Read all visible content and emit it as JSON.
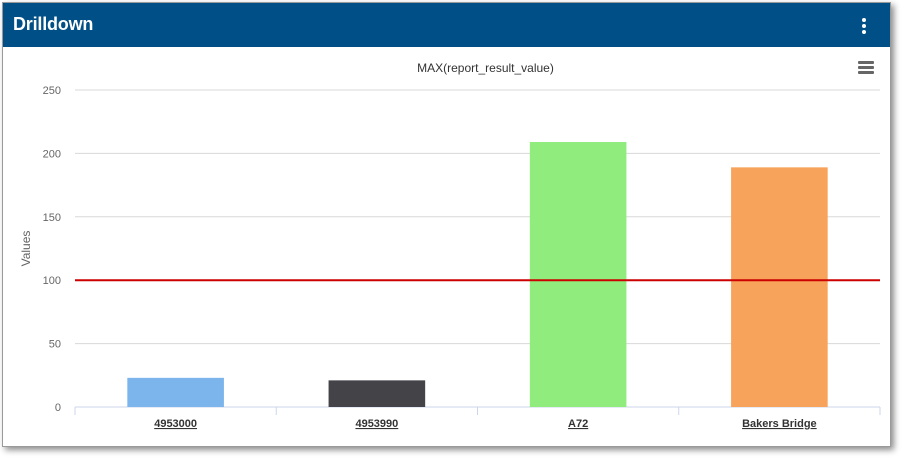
{
  "window": {
    "title": "Drilldown",
    "menu_icon": "kebab-vertical-icon",
    "chart_menu_icon": "hamburger-menu-icon"
  },
  "colors": {
    "header": "#004f86",
    "threshold": "#cc0000",
    "bars": [
      "#7cb5ec",
      "#434348",
      "#90ed7d",
      "#f7a35c"
    ]
  },
  "chart_data": {
    "type": "bar",
    "title": "MAX(report_result_value)",
    "xlabel": "",
    "ylabel": "Values",
    "categories": [
      "4953000",
      "4953990",
      "A72",
      "Bakers Bridge"
    ],
    "values": [
      23,
      21,
      209,
      189
    ],
    "ylim": [
      0,
      250
    ],
    "yticks": [
      0,
      50,
      100,
      150,
      200,
      250
    ],
    "threshold": 100,
    "grid": true,
    "legend": "none"
  }
}
